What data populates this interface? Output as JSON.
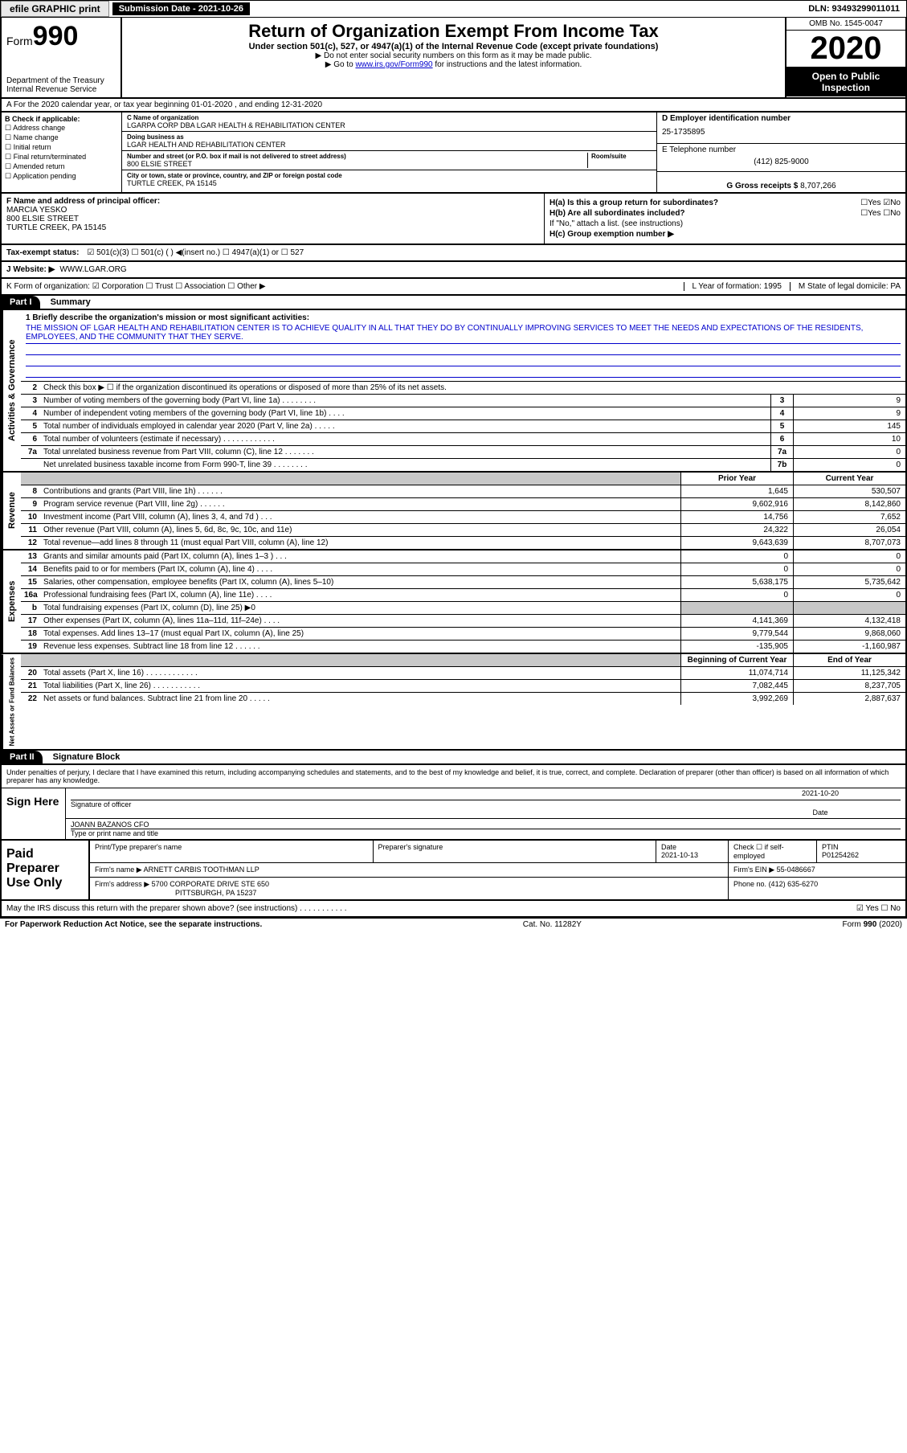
{
  "topbar": {
    "efile": "efile GRAPHIC print",
    "submission": "Submission Date - 2021-10-26",
    "dln": "DLN: 93493299011011"
  },
  "header": {
    "form_prefix": "Form",
    "form_num": "990",
    "dept": "Department of the Treasury",
    "irs": "Internal Revenue Service",
    "title": "Return of Organization Exempt From Income Tax",
    "subtitle": "Under section 501(c), 527, or 4947(a)(1) of the Internal Revenue Code (except private foundations)",
    "note1": "▶ Do not enter social security numbers on this form as it may be made public.",
    "note2_pre": "▶ Go to ",
    "note2_link": "www.irs.gov/Form990",
    "note2_post": " for instructions and the latest information.",
    "omb": "OMB No. 1545-0047",
    "year": "2020",
    "open": "Open to Public Inspection"
  },
  "rowA": "A For the 2020 calendar year, or tax year beginning 01-01-2020    , and ending 12-31-2020",
  "checkB": {
    "title": "B Check if applicable:",
    "items": [
      "☐ Address change",
      "☐ Name change",
      "☐ Initial return",
      "☐ Final return/terminated",
      "☐ Amended return",
      "☐ Application pending"
    ]
  },
  "nameC": {
    "label": "C Name of organization",
    "value": "LGARPA CORP DBA LGAR HEALTH & REHABILITATION CENTER",
    "dba_label": "Doing business as",
    "dba": "LGAR HEALTH AND REHABILITATION CENTER",
    "addr_label": "Number and street (or P.O. box if mail is not delivered to street address)",
    "room_label": "Room/suite",
    "addr": "800 ELSIE STREET",
    "city_label": "City or town, state or province, country, and ZIP or foreign postal code",
    "city": "TURTLE CREEK, PA  15145"
  },
  "rightD": {
    "ein_label": "D Employer identification number",
    "ein": "25-1735895",
    "tel_label": "E Telephone number",
    "tel": "(412) 825-9000",
    "gross_label": "G Gross receipts $",
    "gross": "8,707,266"
  },
  "sectionF": {
    "label": "F  Name and address of principal officer:",
    "name": "MARCIA YESKO",
    "addr1": "800 ELSIE STREET",
    "addr2": "TURTLE CREEK, PA  15145"
  },
  "sectionH": {
    "ha": "H(a)  Is this a group return for subordinates?",
    "ha_ans": "☐Yes ☑No",
    "hb": "H(b)  Are all subordinates included?",
    "hb_ans": "☐Yes ☐No",
    "hb_note": "If \"No,\" attach a list. (see instructions)",
    "hc": "H(c)  Group exemption number ▶"
  },
  "taxExempt": {
    "label": "Tax-exempt status:",
    "opts": "☑ 501(c)(3)   ☐ 501(c) (  ) ◀(insert no.)   ☐ 4947(a)(1) or  ☐ 527"
  },
  "website": {
    "label": "J   Website: ▶",
    "value": "WWW.LGAR.ORG"
  },
  "rowK": {
    "left": "K Form of organization:  ☑ Corporation  ☐ Trust  ☐ Association  ☐ Other ▶",
    "mid": "L Year of formation: 1995",
    "right": "M State of legal domicile: PA"
  },
  "part1": {
    "header": "Part I",
    "title": "Summary",
    "mission_label": "1  Briefly describe the organization's mission or most significant activities:",
    "mission": "THE MISSION OF LGAR HEALTH AND REHABILITATION CENTER IS TO ACHIEVE QUALITY IN ALL THAT THEY DO BY CONTINUALLY IMPROVING SERVICES TO MEET THE NEEDS AND EXPECTATIONS OF THE RESIDENTS, EMPLOYEES, AND THE COMMUNITY THAT THEY SERVE.",
    "line2": "Check this box ▶ ☐  if the organization discontinued its operations or disposed of more than 25% of its net assets.",
    "governance": [
      {
        "n": "3",
        "t": "Number of voting members of the governing body (Part VI, line 1a)  .   .   .   .   .   .   .   .",
        "b": "3",
        "v": "9"
      },
      {
        "n": "4",
        "t": "Number of independent voting members of the governing body (Part VI, line 1b)  .   .   .   .",
        "b": "4",
        "v": "9"
      },
      {
        "n": "5",
        "t": "Total number of individuals employed in calendar year 2020 (Part V, line 2a)  .   .   .   .   .",
        "b": "5",
        "v": "145"
      },
      {
        "n": "6",
        "t": "Total number of volunteers (estimate if necessary)   .   .   .   .   .   .   .   .   .   .   .   .",
        "b": "6",
        "v": "10"
      },
      {
        "n": "7a",
        "t": "Total unrelated business revenue from Part VIII, column (C), line 12   .   .   .   .   .   .   .",
        "b": "7a",
        "v": "0"
      },
      {
        "n": "",
        "t": "Net unrelated business taxable income from Form 990-T, line 39   .   .   .   .   .   .   .   .",
        "b": "7b",
        "v": "0"
      }
    ],
    "col_prior": "Prior Year",
    "col_current": "Current Year",
    "revenue": [
      {
        "n": "8",
        "t": "Contributions and grants (Part VIII, line 1h)   .   .   .   .   .   .",
        "p": "1,645",
        "c": "530,507"
      },
      {
        "n": "9",
        "t": "Program service revenue (Part VIII, line 2g)   .   .   .   .   .   .",
        "p": "9,602,916",
        "c": "8,142,860"
      },
      {
        "n": "10",
        "t": "Investment income (Part VIII, column (A), lines 3, 4, and 7d )   .   .   .",
        "p": "14,756",
        "c": "7,652"
      },
      {
        "n": "11",
        "t": "Other revenue (Part VIII, column (A), lines 5, 6d, 8c, 9c, 10c, and 11e)",
        "p": "24,322",
        "c": "26,054"
      },
      {
        "n": "12",
        "t": "Total revenue—add lines 8 through 11 (must equal Part VIII, column (A), line 12)",
        "p": "9,643,639",
        "c": "8,707,073"
      }
    ],
    "expenses": [
      {
        "n": "13",
        "t": "Grants and similar amounts paid (Part IX, column (A), lines 1–3 )  .   .   .",
        "p": "0",
        "c": "0"
      },
      {
        "n": "14",
        "t": "Benefits paid to or for members (Part IX, column (A), line 4)  .   .   .   .",
        "p": "0",
        "c": "0"
      },
      {
        "n": "15",
        "t": "Salaries, other compensation, employee benefits (Part IX, column (A), lines 5–10)",
        "p": "5,638,175",
        "c": "5,735,642"
      },
      {
        "n": "16a",
        "t": "Professional fundraising fees (Part IX, column (A), line 11e)  .   .   .   .",
        "p": "0",
        "c": "0"
      },
      {
        "n": "b",
        "t": "Total fundraising expenses (Part IX, column (D), line 25) ▶0",
        "p": "",
        "c": "",
        "shaded": true
      },
      {
        "n": "17",
        "t": "Other expenses (Part IX, column (A), lines 11a–11d, 11f–24e)  .   .   .   .",
        "p": "4,141,369",
        "c": "4,132,418"
      },
      {
        "n": "18",
        "t": "Total expenses. Add lines 13–17 (must equal Part IX, column (A), line 25)",
        "p": "9,779,544",
        "c": "9,868,060"
      },
      {
        "n": "19",
        "t": "Revenue less expenses. Subtract line 18 from line 12  .   .   .   .   .   .",
        "p": "-135,905",
        "c": "-1,160,987"
      }
    ],
    "col_begin": "Beginning of Current Year",
    "col_end": "End of Year",
    "netassets": [
      {
        "n": "20",
        "t": "Total assets (Part X, line 16)  .   .   .   .   .   .   .   .   .   .   .   .",
        "p": "11,074,714",
        "c": "11,125,342"
      },
      {
        "n": "21",
        "t": "Total liabilities (Part X, line 26)  .   .   .   .   .   .   .   .   .   .   .",
        "p": "7,082,445",
        "c": "8,237,705"
      },
      {
        "n": "22",
        "t": "Net assets or fund balances. Subtract line 21 from line 20  .   .   .   .   .",
        "p": "3,992,269",
        "c": "2,887,637"
      }
    ],
    "vert_gov": "Activities & Governance",
    "vert_rev": "Revenue",
    "vert_exp": "Expenses",
    "vert_net": "Net Assets or Fund Balances"
  },
  "part2": {
    "header": "Part II",
    "title": "Signature Block",
    "declare": "Under penalties of perjury, I declare that I have examined this return, including accompanying schedules and statements, and to the best of my knowledge and belief, it is true, correct, and complete. Declaration of preparer (other than officer) is based on all information of which preparer has any knowledge.",
    "sign_here": "Sign Here",
    "sig_officer": "Signature of officer",
    "sig_date": "2021-10-20",
    "date_label": "Date",
    "officer_name": "JOANN BAZANOS CFO",
    "officer_label": "Type or print name and title",
    "paid_label": "Paid Preparer Use Only",
    "prep_name_label": "Print/Type preparer's name",
    "prep_sig_label": "Preparer's signature",
    "prep_date_label": "Date",
    "prep_date": "2021-10-13",
    "check_label": "Check ☐ if self-employed",
    "ptin_label": "PTIN",
    "ptin": "P01254262",
    "firm_name_label": "Firm's name     ▶",
    "firm_name": "ARNETT CARBIS TOOTHMAN LLP",
    "firm_ein_label": "Firm's EIN ▶",
    "firm_ein": "55-0486667",
    "firm_addr_label": "Firm's address ▶",
    "firm_addr": "5700 CORPORATE DRIVE STE 650",
    "firm_city": "PITTSBURGH, PA  15237",
    "phone_label": "Phone no.",
    "phone": "(412) 635-6270"
  },
  "footer": {
    "discuss": "May the IRS discuss this return with the preparer shown above? (see instructions)   .   .   .   .   .   .   .   .   .   .   .",
    "discuss_ans": "☑ Yes  ☐ No",
    "paperwork": "For Paperwork Reduction Act Notice, see the separate instructions.",
    "cat": "Cat. No. 11282Y",
    "form": "Form 990 (2020)"
  }
}
